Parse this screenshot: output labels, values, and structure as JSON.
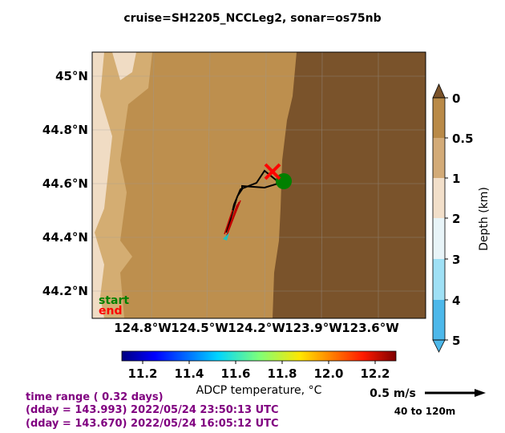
{
  "header": {
    "title": "cruise=SH2205_NCCLeg2,   sonar=os75nb"
  },
  "map": {
    "lat_labels": [
      "45°N",
      "44.8°N",
      "44.6°N",
      "44.4°N",
      "44.2°N"
    ],
    "lon_labels": [
      "124.8°W",
      "124.5°W",
      "124.2°W",
      "123.9°W",
      "123.6°W"
    ],
    "legend": {
      "start": "start",
      "end": "end"
    }
  },
  "depth_colorbar": {
    "ticks": [
      "0",
      "0.5",
      "1",
      "2",
      "3",
      "4",
      "5"
    ],
    "label": "Depth (km)"
  },
  "temperature_colorbar": {
    "ticks": [
      "11.2",
      "11.4",
      "11.6",
      "11.8",
      "12.0",
      "12.2"
    ],
    "label": "ADCP temperature, °C"
  },
  "scale": {
    "speed": "0.5 m/s",
    "depth_range": "40 to 120m"
  },
  "time_info": [
    "time range ( 0.32 days)",
    "(dday = 143.993) 2022/05/24 23:50:13 UTC",
    "(dday = 143.670) 2022/05/24 16:05:12 UTC"
  ]
}
